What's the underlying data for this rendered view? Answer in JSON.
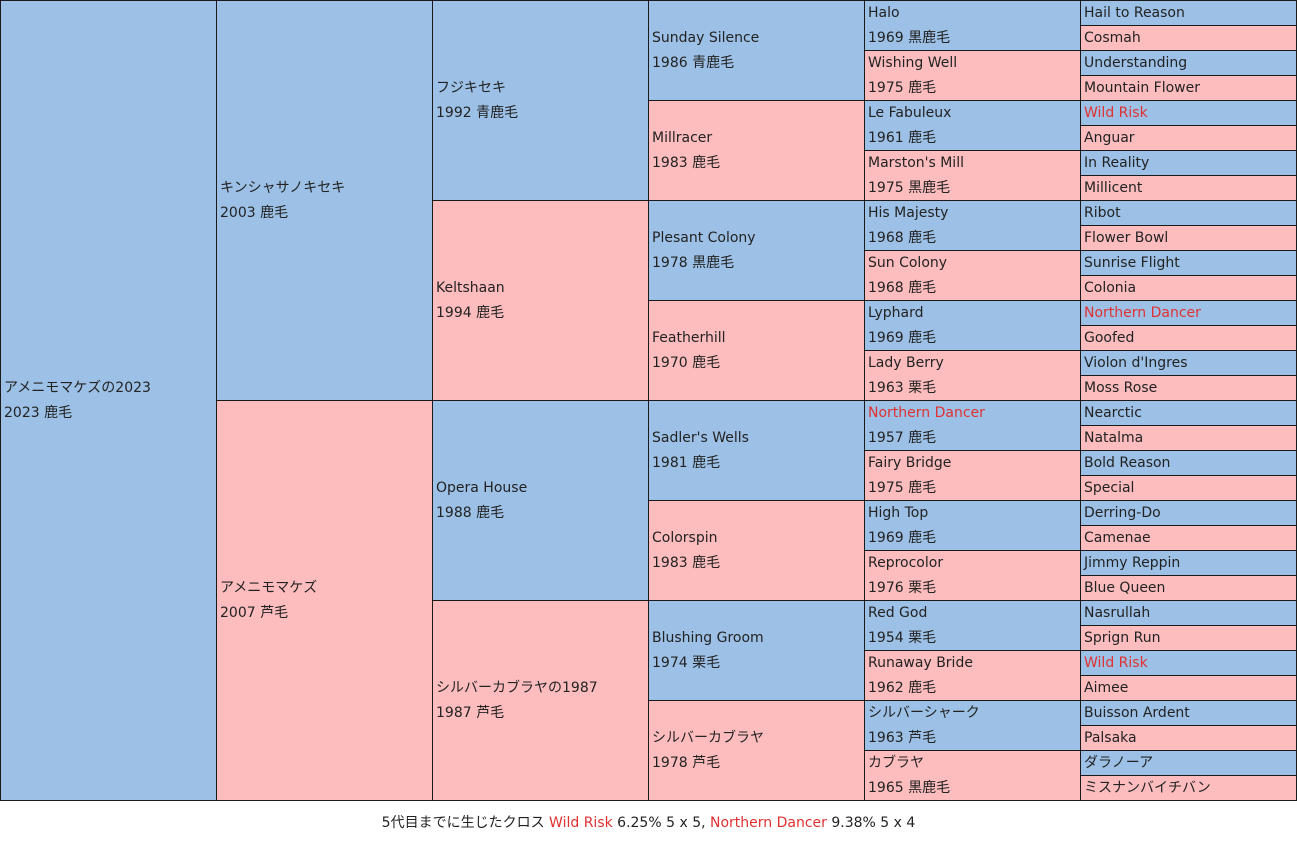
{
  "colors": {
    "sire_bg": "#9dc1e6",
    "dam_bg": "#fdbdbe",
    "cross_text": "#e03131"
  },
  "pedigree": {
    "subject": {
      "name": "アメニモマケズの2023",
      "info": "2023 鹿毛"
    },
    "gen1": [
      {
        "name": "キンシャサノキセキ",
        "info": "2003 鹿毛"
      },
      {
        "name": "アメニモマケズ",
        "info": "2007 芦毛"
      }
    ],
    "gen2": [
      {
        "name": "フジキセキ",
        "info": "1992 青鹿毛"
      },
      {
        "name": "Keltshaan",
        "info": "1994 鹿毛"
      },
      {
        "name": "Opera House",
        "info": "1988 鹿毛"
      },
      {
        "name": "シルバーカブラヤの1987",
        "info": "1987 芦毛"
      }
    ],
    "gen3": [
      {
        "name": "Sunday Silence",
        "info": "1986 青鹿毛"
      },
      {
        "name": "Millracer",
        "info": "1983 鹿毛"
      },
      {
        "name": "Plesant Colony",
        "info": "1978 黒鹿毛"
      },
      {
        "name": "Featherhill",
        "info": "1970 鹿毛"
      },
      {
        "name": "Sadler's Wells",
        "info": "1981 鹿毛"
      },
      {
        "name": "Colorspin",
        "info": "1983 鹿毛"
      },
      {
        "name": "Blushing Groom",
        "info": "1974 栗毛"
      },
      {
        "name": "シルバーカブラヤ",
        "info": "1978 芦毛"
      }
    ],
    "gen4": [
      {
        "name": "Halo",
        "info": "1969 黒鹿毛"
      },
      {
        "name": "Wishing Well",
        "info": "1975 鹿毛"
      },
      {
        "name": "Le Fabuleux",
        "info": "1961 鹿毛"
      },
      {
        "name": "Marston's Mill",
        "info": "1975 黒鹿毛"
      },
      {
        "name": "His Majesty",
        "info": "1968 鹿毛"
      },
      {
        "name": "Sun Colony",
        "info": "1968 鹿毛"
      },
      {
        "name": "Lyphard",
        "info": "1969 鹿毛"
      },
      {
        "name": "Lady Berry",
        "info": "1963 栗毛"
      },
      {
        "name": "Northern Dancer",
        "info": "1957 鹿毛",
        "cross": true
      },
      {
        "name": "Fairy Bridge",
        "info": "1975 鹿毛"
      },
      {
        "name": "High Top",
        "info": "1969 鹿毛"
      },
      {
        "name": "Reprocolor",
        "info": "1976 栗毛"
      },
      {
        "name": "Red God",
        "info": "1954 栗毛"
      },
      {
        "name": "Runaway Bride",
        "info": "1962 鹿毛"
      },
      {
        "name": "シルバーシャーク",
        "info": "1963 芦毛"
      },
      {
        "name": "カブラヤ",
        "info": "1965 黒鹿毛"
      }
    ],
    "gen5": [
      {
        "name": "Hail to Reason"
      },
      {
        "name": "Cosmah"
      },
      {
        "name": "Understanding"
      },
      {
        "name": "Mountain Flower"
      },
      {
        "name": "Wild Risk",
        "cross": true
      },
      {
        "name": "Anguar"
      },
      {
        "name": "In Reality"
      },
      {
        "name": "Millicent"
      },
      {
        "name": "Ribot"
      },
      {
        "name": "Flower Bowl"
      },
      {
        "name": "Sunrise Flight"
      },
      {
        "name": "Colonia"
      },
      {
        "name": "Northern Dancer",
        "cross": true
      },
      {
        "name": "Goofed"
      },
      {
        "name": "Violon d'Ingres"
      },
      {
        "name": "Moss Rose"
      },
      {
        "name": "Nearctic"
      },
      {
        "name": "Natalma"
      },
      {
        "name": "Bold Reason"
      },
      {
        "name": "Special"
      },
      {
        "name": "Derring-Do"
      },
      {
        "name": "Camenae"
      },
      {
        "name": "Jimmy Reppin"
      },
      {
        "name": "Blue Queen"
      },
      {
        "name": "Nasrullah"
      },
      {
        "name": "Sprign Run"
      },
      {
        "name": "Wild Risk",
        "cross": true
      },
      {
        "name": "Aimee"
      },
      {
        "name": "Buisson Ardent"
      },
      {
        "name": "Palsaka"
      },
      {
        "name": "ダラノーア"
      },
      {
        "name": "ミスナンバイチバン"
      }
    ]
  },
  "crosses": {
    "prefix": "5代目までに生じたクロス",
    "items": [
      {
        "name": "Wild Risk",
        "detail": "6.25% 5 x 5"
      },
      {
        "name": "Northern Dancer",
        "detail": "9.38% 5 x 4"
      }
    ],
    "separator": ","
  }
}
